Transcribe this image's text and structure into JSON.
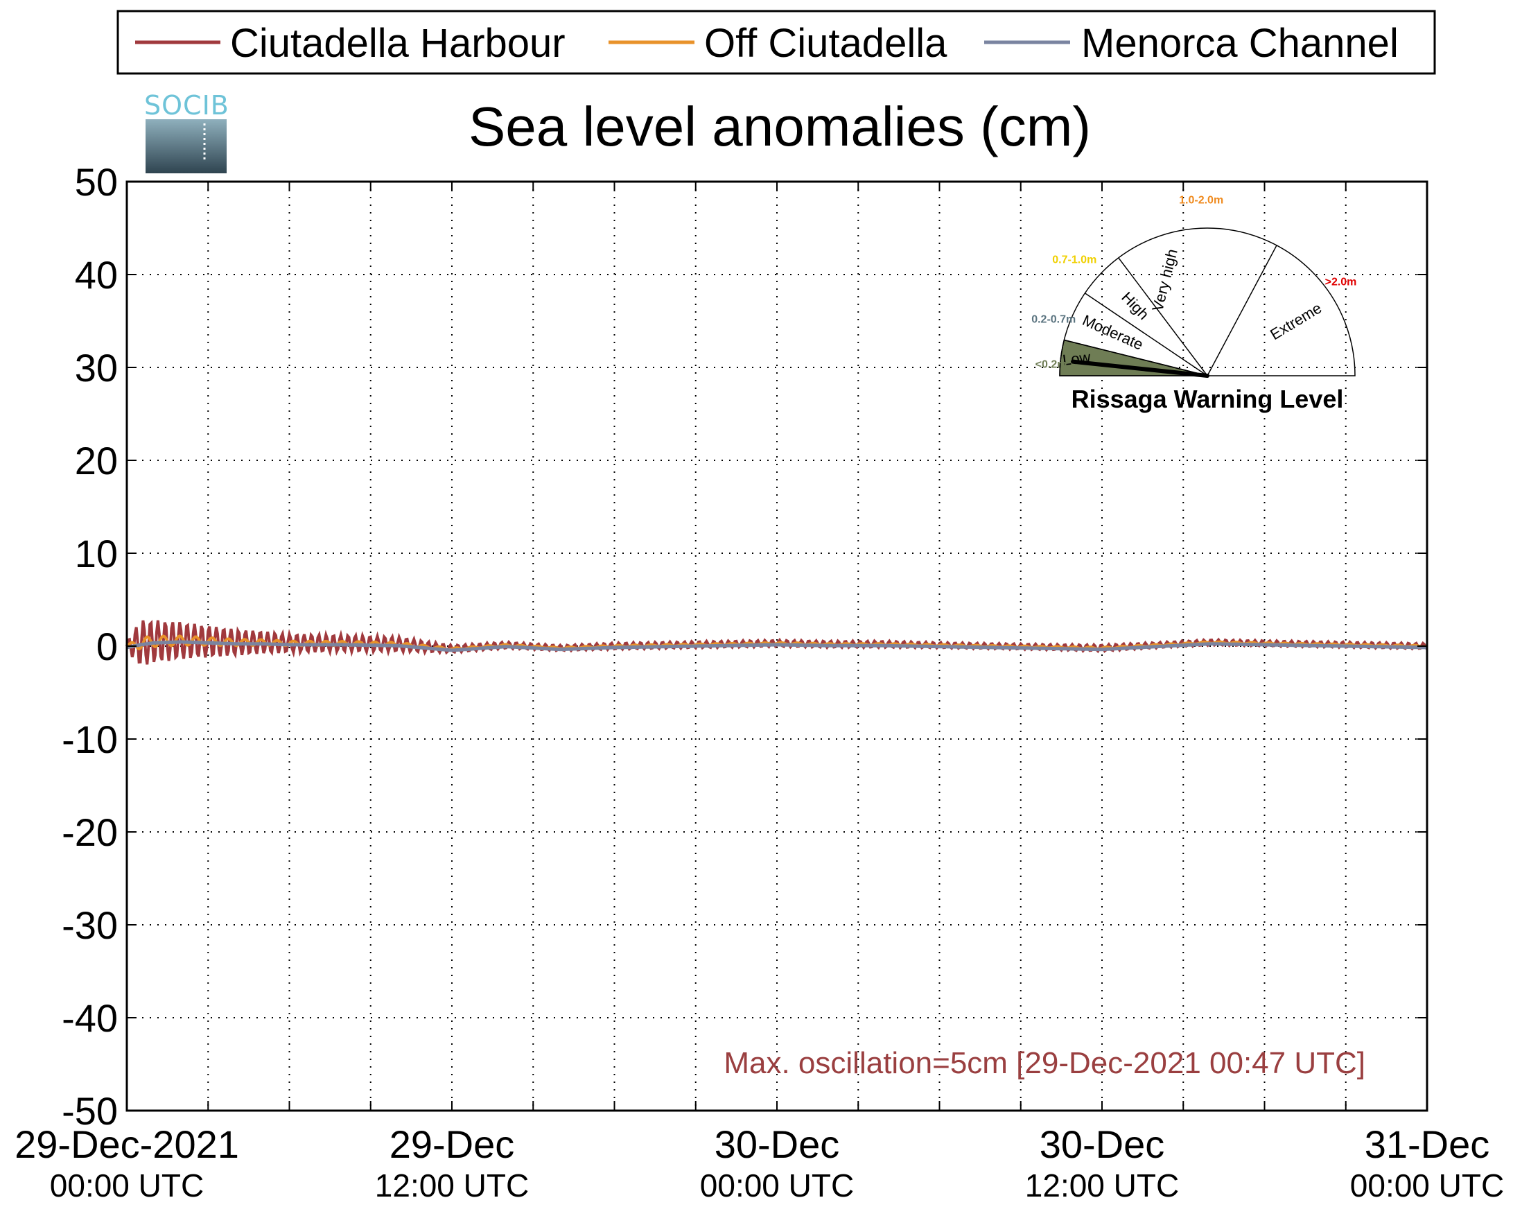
{
  "chart_data": {
    "type": "line",
    "title": "Sea level anomalies (cm)",
    "ylim": [
      -50,
      50
    ],
    "yticks": [
      "50",
      "40",
      "30",
      "20",
      "10",
      "0",
      "-10",
      "-20",
      "-30",
      "-40",
      "-50"
    ],
    "xlim_hours": [
      0,
      48
    ],
    "xticks": [
      {
        "hour": 0,
        "date": "29-Dec-2021",
        "time": "00:00 UTC"
      },
      {
        "hour": 12,
        "date": "29-Dec",
        "time": "12:00 UTC"
      },
      {
        "hour": 24,
        "date": "30-Dec",
        "time": "00:00 UTC"
      },
      {
        "hour": 36,
        "date": "30-Dec",
        "time": "12:00 UTC"
      },
      {
        "hour": 48,
        "date": "31-Dec",
        "time": "00:00 UTC"
      }
    ],
    "grid": true,
    "legend_position": "top",
    "annotation": "Max. oscillation=5cm [29-Dec-2021 00:47 UTC]",
    "series": [
      {
        "name": "Ciutadella Harbour",
        "color": "#a0393d"
      },
      {
        "name": "Off Ciutadella",
        "color": "#e8922a"
      },
      {
        "name": "Menorca Channel",
        "color": "#7a84a0"
      }
    ],
    "envelope_x_hours": [
      0,
      0.5,
      1,
      2,
      3,
      4,
      5,
      6,
      8,
      10,
      12,
      14,
      16,
      18,
      20,
      22,
      24,
      26,
      28,
      30,
      32,
      34,
      36,
      38,
      40,
      42,
      44,
      46,
      48
    ],
    "harbour_amplitude_cm": [
      0.5,
      2.5,
      2.3,
      2.0,
      1.7,
      1.4,
      1.2,
      1.0,
      0.9,
      0.8,
      0.4,
      0.35,
      0.3,
      0.35,
      0.35,
      0.35,
      0.35,
      0.35,
      0.35,
      0.3,
      0.3,
      0.3,
      0.35,
      0.3,
      0.3,
      0.3,
      0.3,
      0.3,
      0.3
    ],
    "baseline_cm": [
      0,
      0.3,
      0.5,
      0.6,
      0.5,
      0.4,
      0.4,
      0.3,
      0.3,
      0.2,
      -0.3,
      0.1,
      -0.2,
      0.0,
      0.1,
      0.2,
      0.3,
      0.2,
      0.2,
      0.1,
      0.0,
      -0.1,
      -0.2,
      0.1,
      0.4,
      0.3,
      0.2,
      0.1,
      0.0
    ]
  },
  "logo": {
    "text": "SOCIB"
  },
  "gauge": {
    "title": "Rissaga Warning Level",
    "sectors": [
      {
        "name": "Low",
        "range": "<0.2m",
        "color": "#6f7d55"
      },
      {
        "name": "Moderate",
        "range": "0.2-0.7m",
        "color": "#5b7480"
      },
      {
        "name": "High",
        "range": "0.7-1.0m",
        "color": "#f0d000"
      },
      {
        "name": "Very high",
        "range": "1.0-2.0m",
        "color": "#ef8a1e"
      },
      {
        "name": "Extreme",
        "range": ">2.0m",
        "color": "#e00000"
      }
    ],
    "current_level": "Low"
  }
}
